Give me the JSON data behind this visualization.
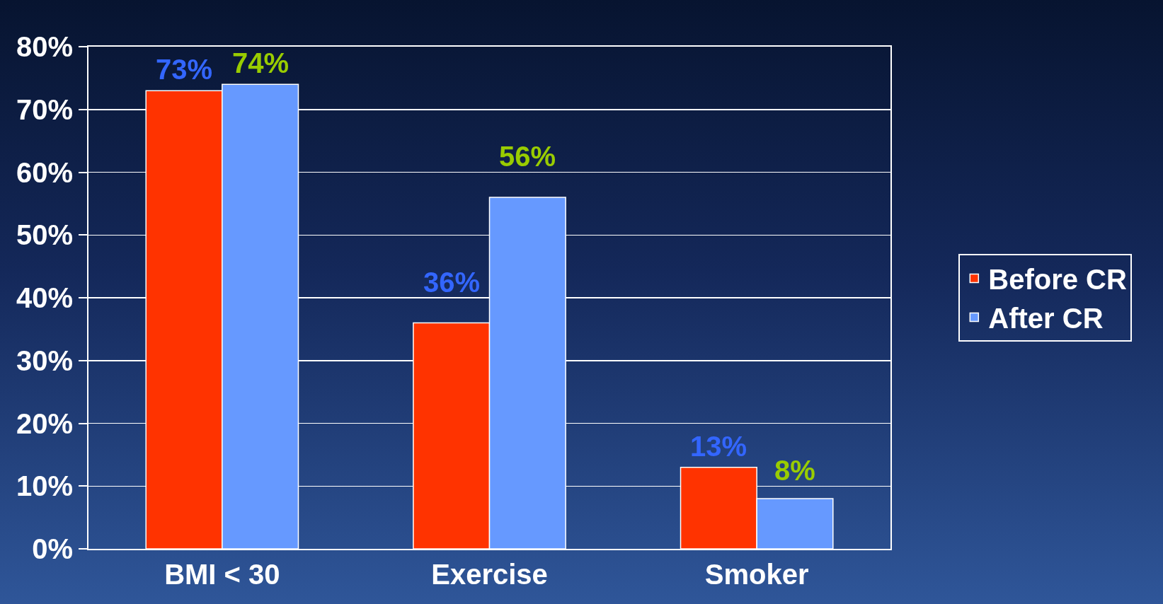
{
  "chart_data": {
    "type": "bar",
    "categories": [
      "BMI < 30",
      "Exercise",
      "Smoker"
    ],
    "series": [
      {
        "name": "Before CR",
        "color": "#ff3300",
        "values": [
          73,
          36,
          13
        ],
        "value_labels": [
          "73%",
          "36%",
          "13%"
        ]
      },
      {
        "name": "After CR",
        "color": "#6699ff",
        "values": [
          74,
          56,
          8
        ],
        "value_labels": [
          "74%",
          "56%",
          "8%"
        ]
      }
    ],
    "ylim": [
      0,
      80
    ],
    "yticks": [
      {
        "value": 0,
        "label": "0%"
      },
      {
        "value": 10,
        "label": "10%"
      },
      {
        "value": 20,
        "label": "20%"
      },
      {
        "value": 30,
        "label": "30%"
      },
      {
        "value": 40,
        "label": "40%"
      },
      {
        "value": 50,
        "label": "50%"
      },
      {
        "value": 60,
        "label": "60%"
      },
      {
        "value": 70,
        "label": "70%"
      },
      {
        "value": 80,
        "label": "80%"
      }
    ],
    "grid": "y",
    "legend": "right"
  }
}
